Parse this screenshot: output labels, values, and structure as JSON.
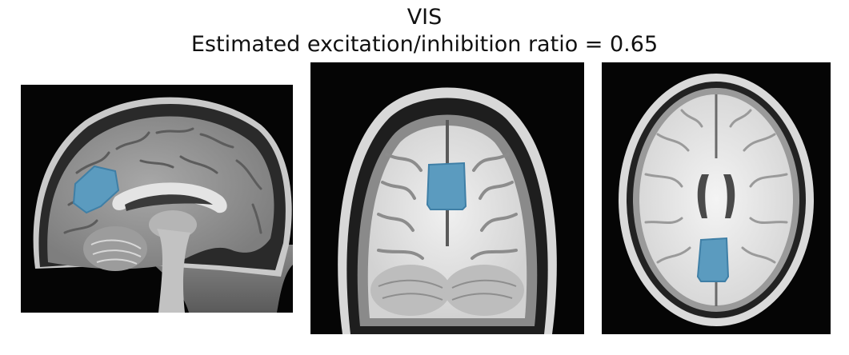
{
  "figure": {
    "title": "VIS",
    "subtitle": "Estimated excitation/inhibition ratio = 0.65"
  },
  "colors": {
    "background": "#ffffff",
    "scan_background": "#050505",
    "roi_fill": "#5b9bbf",
    "roi_edge": "#3f7fa6"
  },
  "panels": [
    {
      "view": "sagittal",
      "roi": "visual cortex region"
    },
    {
      "view": "coronal",
      "roi": "visual cortex region"
    },
    {
      "view": "axial",
      "roi": "visual cortex region"
    }
  ]
}
